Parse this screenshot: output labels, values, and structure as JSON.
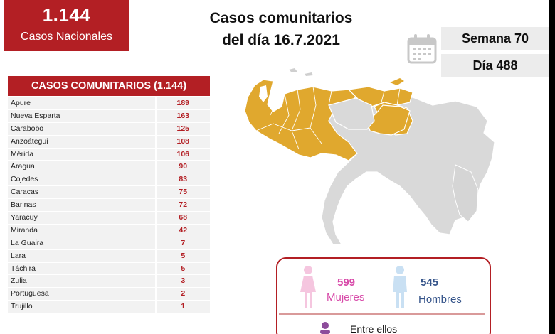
{
  "header": {
    "total_cases": "1.144",
    "total_label": "Casos Nacionales",
    "title_line1": "Casos comunitarios",
    "title_line2": "del día 16.7.2021",
    "week": "Semana 70",
    "day": "Día 488"
  },
  "table": {
    "title": "CASOS COMUNITARIOS (1.144)",
    "rows": [
      {
        "state": "Apure",
        "cases": "189"
      },
      {
        "state": "Nueva Esparta",
        "cases": "163"
      },
      {
        "state": "Carabobo",
        "cases": "125"
      },
      {
        "state": "Anzoátegui",
        "cases": "108"
      },
      {
        "state": "Mérida",
        "cases": "106"
      },
      {
        "state": "Aragua",
        "cases": "90"
      },
      {
        "state": "Cojedes",
        "cases": "83"
      },
      {
        "state": "Caracas",
        "cases": "75"
      },
      {
        "state": "Barinas",
        "cases": "72"
      },
      {
        "state": "Yaracuy",
        "cases": "68"
      },
      {
        "state": "Miranda",
        "cases": "42"
      },
      {
        "state": "La Guaira",
        "cases": "7"
      },
      {
        "state": "Lara",
        "cases": "5"
      },
      {
        "state": "Táchira",
        "cases": "5"
      },
      {
        "state": "Zulia",
        "cases": "3"
      },
      {
        "state": "Portuguesa",
        "cases": "2"
      },
      {
        "state": "Trujillo",
        "cases": "1"
      }
    ]
  },
  "gender": {
    "women_count": "599",
    "women_label": "Mujeres",
    "men_count": "545",
    "men_label": "Hombres",
    "footer_text": "Entre ellos"
  },
  "colors": {
    "brand_red": "#b31f24",
    "affected_state": "#e0a82e",
    "unaffected_state": "#d9d9d9",
    "women": "#d84aa9",
    "men": "#35548a"
  },
  "icons": [
    "calendar-icon",
    "woman-icon",
    "man-icon",
    "person-icon"
  ]
}
